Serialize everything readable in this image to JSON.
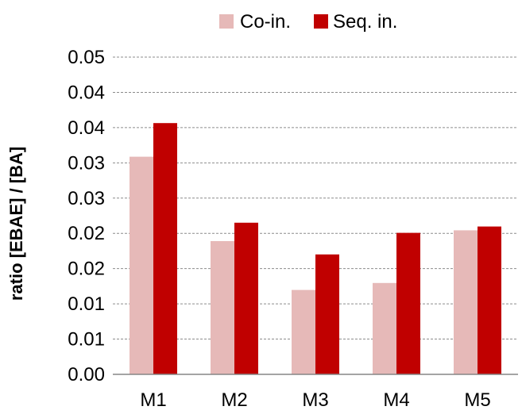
{
  "chart_data": {
    "type": "bar",
    "title": "",
    "xlabel": "",
    "ylabel": "ratio [EBAE] / [BA]",
    "categories": [
      "M1",
      "M2",
      "M3",
      "M4",
      "M5"
    ],
    "series": [
      {
        "name": "Co-in.",
        "color": "#e6b9b8",
        "values": [
          0.0343,
          0.021,
          0.0133,
          0.0144,
          0.0227
        ]
      },
      {
        "name": "Seq. in.",
        "color": "#c00000",
        "values": [
          0.0396,
          0.0239,
          0.0189,
          0.0223,
          0.0233
        ]
      }
    ],
    "ylim": [
      0,
      0.05
    ],
    "y_tick_labels": [
      "0.00",
      "0.01",
      "0.01",
      "0.02",
      "0.02",
      "0.03",
      "0.03",
      "0.04",
      "0.04",
      "0.05"
    ],
    "grid": true,
    "legend_position": "top"
  }
}
